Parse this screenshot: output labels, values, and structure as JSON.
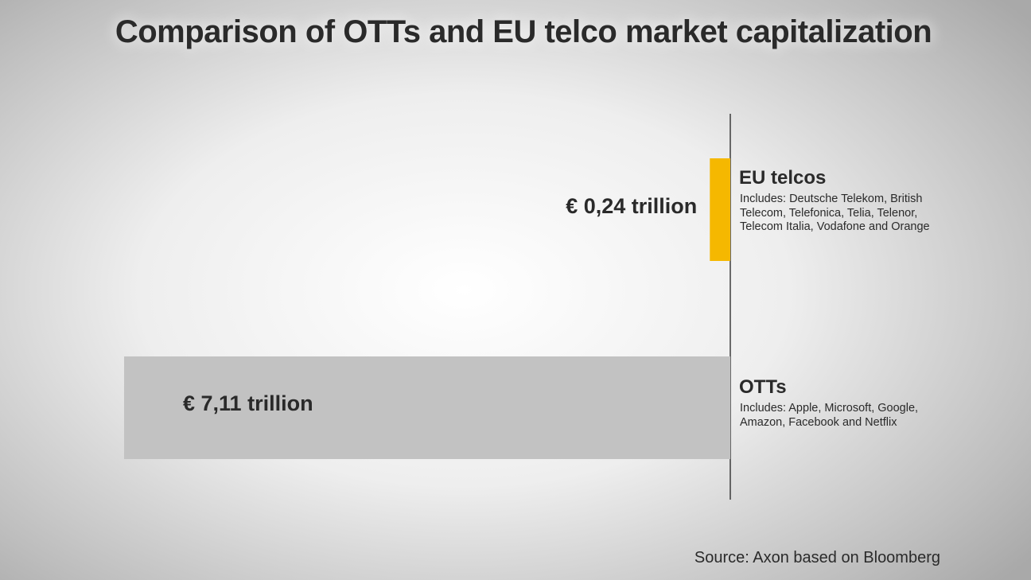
{
  "chart_data": {
    "type": "hbar",
    "title": "Comparison of OTTs and EU telco market capitalization",
    "categories": [
      "EU telcos",
      "OTTs"
    ],
    "descriptions": [
      "Includes: Deutsche Telekom, British Telecom, Telefonica, Telia, Telenor, Telecom Italia, Vodafone and Orange",
      "Includes: Apple, Microsoft, Google, Amazon, Facebook and Netflix"
    ],
    "values": [
      0.24,
      7.11
    ],
    "value_labels": [
      "€ 0,24 trillion",
      "€ 7,11 trillion"
    ],
    "colors": [
      "#f5b800",
      "#c2c2c2"
    ],
    "source": "Source: Axon based on Bloomberg"
  }
}
